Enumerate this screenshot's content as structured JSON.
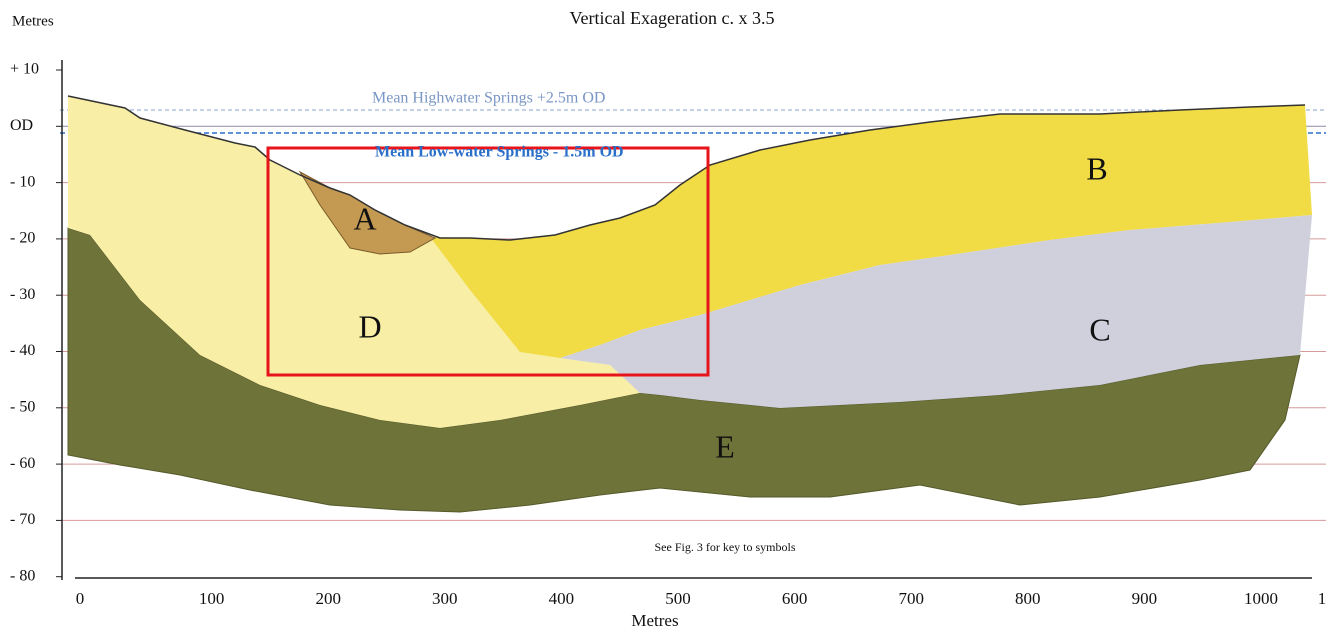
{
  "header": {
    "y_unit": "Metres",
    "title": "Vertical Exageration c. x 3.5"
  },
  "y_axis": {
    "ticks": [
      "+ 10",
      "OD",
      "- 10",
      "- 20",
      "- 30",
      "- 40",
      "- 50",
      "- 60",
      "- 70",
      "- 80"
    ]
  },
  "x_axis": {
    "ticks": [
      "0",
      "100",
      "200",
      "300",
      "400",
      "500",
      "600",
      "700",
      "800",
      "900",
      "1000",
      "1"
    ],
    "label": "Metres"
  },
  "levels": {
    "high": "Mean Highwater Springs +2.5m OD",
    "low": "Mean Low-water Springs  - 1.5m OD"
  },
  "units": [
    "A",
    "B",
    "C",
    "D",
    "E"
  ],
  "note": "See Fig. 3 for key to symbols"
}
